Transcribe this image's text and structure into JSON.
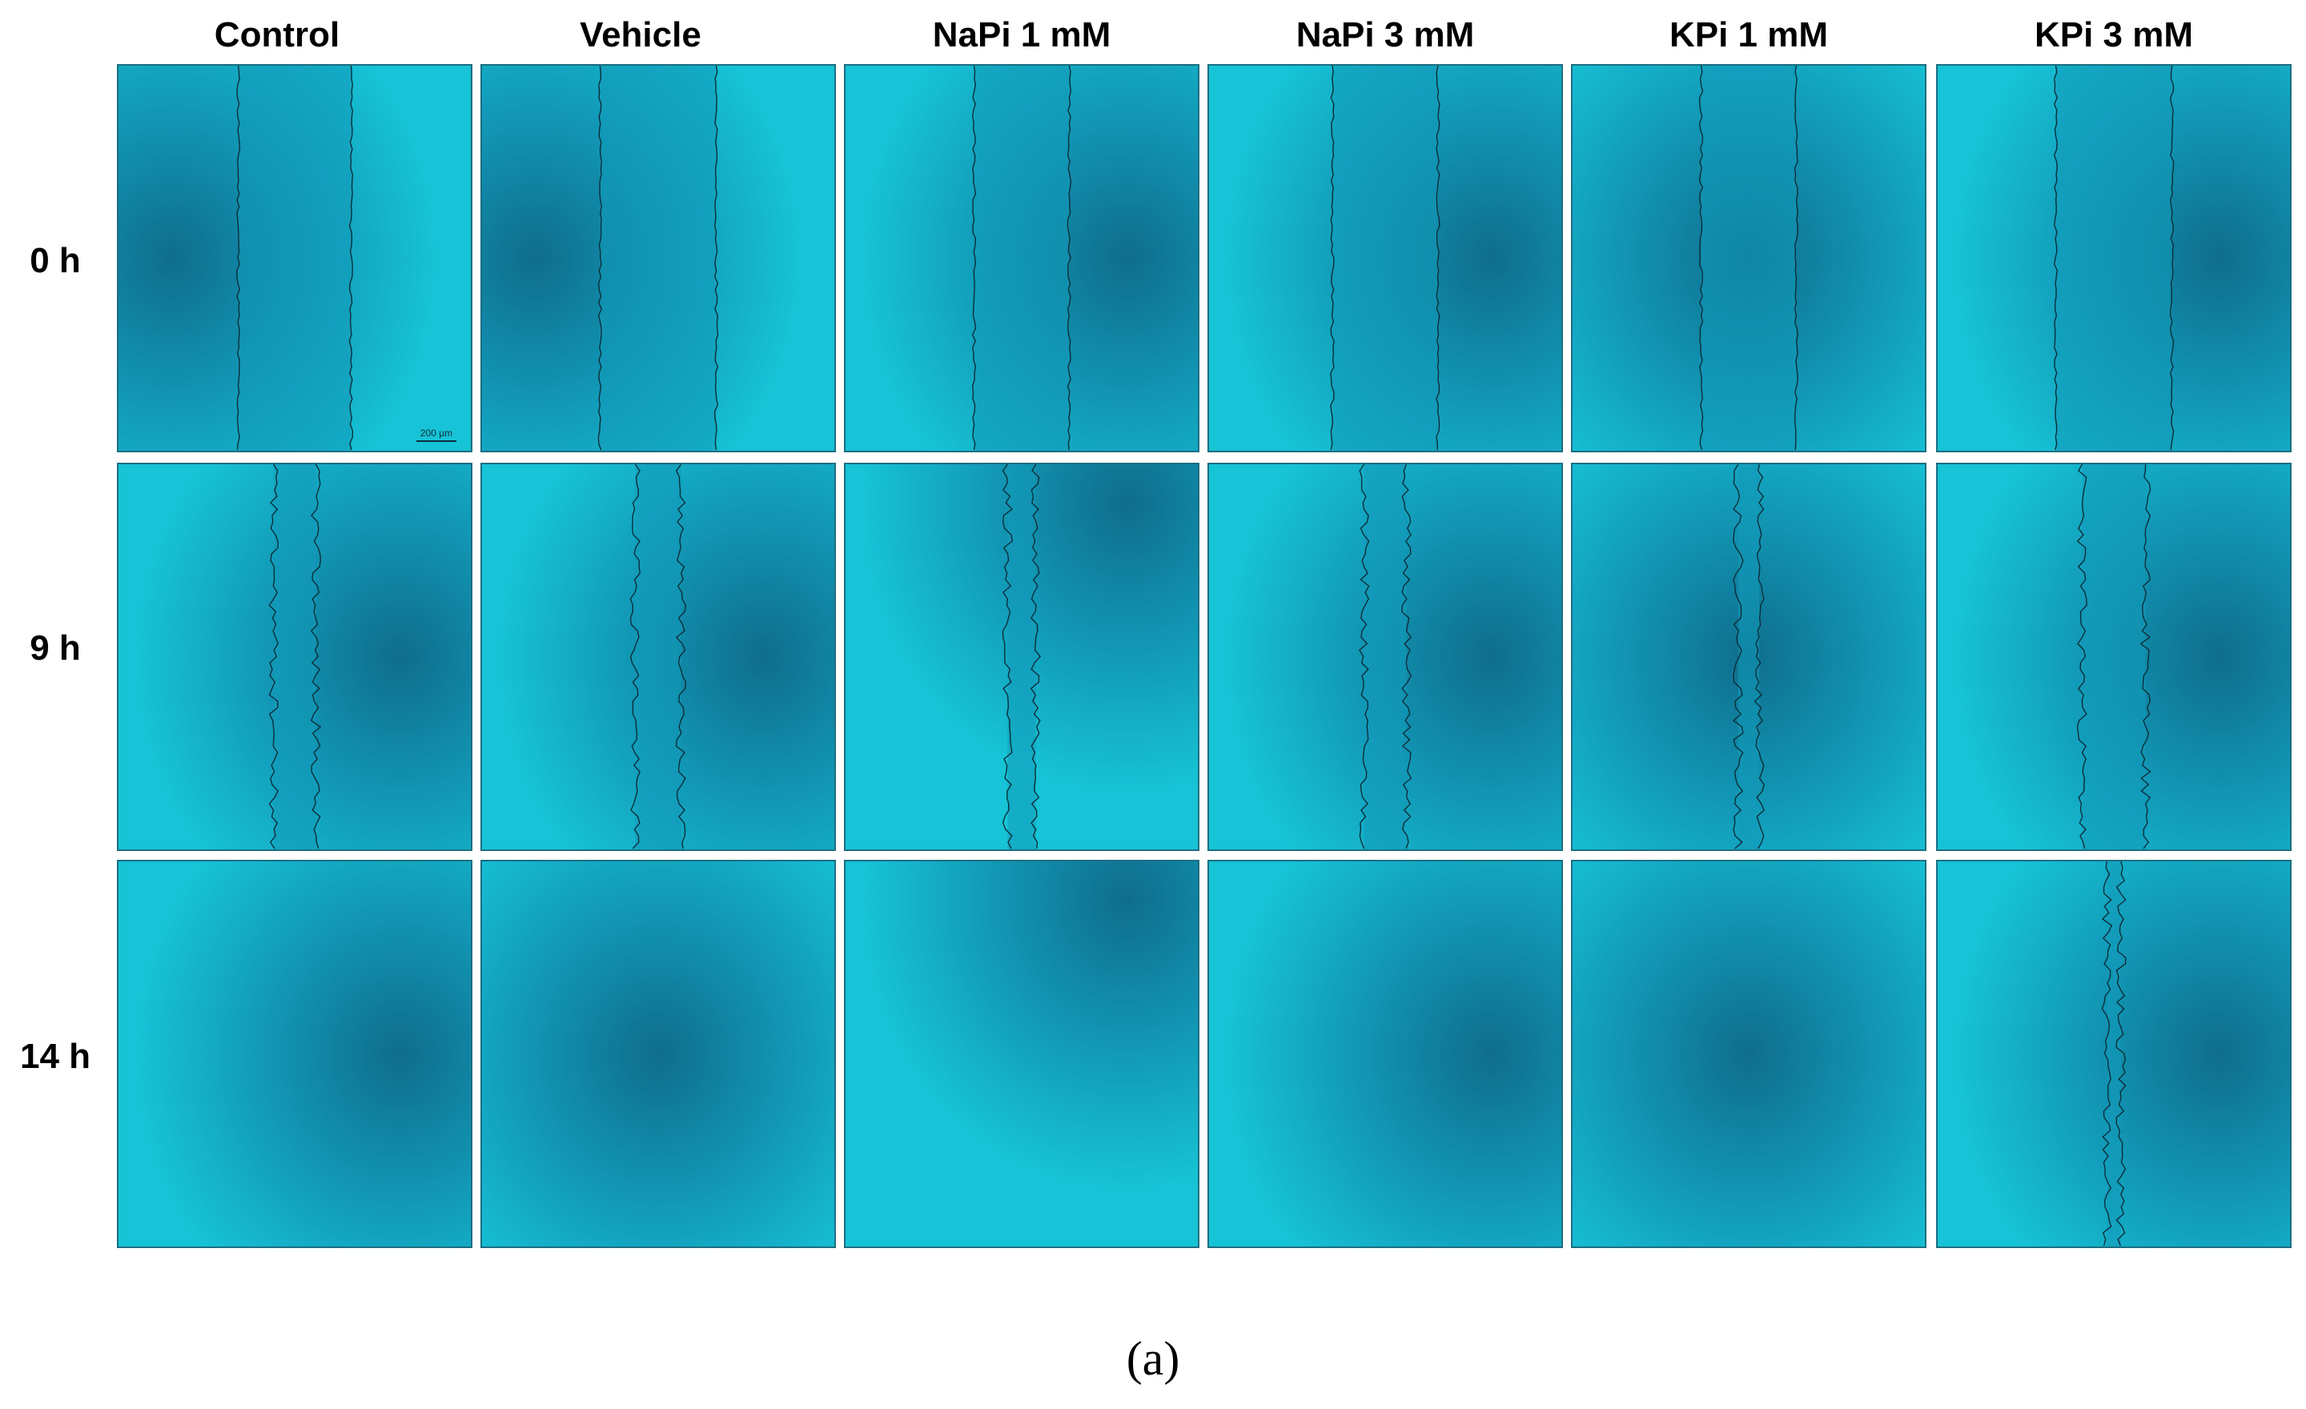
{
  "figure": {
    "columns": [
      "Control",
      "Vehicle",
      "NaPi 1 mM",
      "NaPi 3 mM",
      "KPi 1 mM",
      "KPi 3 mM"
    ],
    "rows": [
      "0 h",
      "9 h",
      "14 h"
    ],
    "scale_bar_label": "200 µm",
    "caption": "(a)",
    "panel_colors": {
      "light": "#17c3d6",
      "mid": "#129bb9",
      "dark": "#0f6d8c",
      "edge_line": "#0b2f3a"
    },
    "panels": [
      [
        {
          "open_gap": 0.32,
          "dark_side": "left"
        },
        {
          "open_gap": 0.33,
          "dark_side": "left"
        },
        {
          "open_gap": 0.27,
          "dark_side": "right"
        },
        {
          "open_gap": 0.3,
          "dark_side": "right"
        },
        {
          "open_gap": 0.27,
          "dark_side": "both"
        },
        {
          "open_gap": 0.33,
          "dark_side": "right"
        }
      ],
      [
        {
          "open_gap": 0.12,
          "dark_side": "right"
        },
        {
          "open_gap": 0.13,
          "dark_side": "right"
        },
        {
          "open_gap": 0.08,
          "dark_side": "top-right"
        },
        {
          "open_gap": 0.12,
          "dark_side": "right"
        },
        {
          "open_gap": 0.06,
          "dark_side": "both"
        },
        {
          "open_gap": 0.18,
          "dark_side": "right"
        }
      ],
      [
        {
          "open_gap": 0,
          "dark_side": "right"
        },
        {
          "open_gap": 0,
          "dark_side": "center"
        },
        {
          "open_gap": 0,
          "dark_side": "top-right"
        },
        {
          "open_gap": 0,
          "dark_side": "right"
        },
        {
          "open_gap": 0,
          "dark_side": "center"
        },
        {
          "open_gap": 0.04,
          "dark_side": "right"
        }
      ]
    ]
  }
}
